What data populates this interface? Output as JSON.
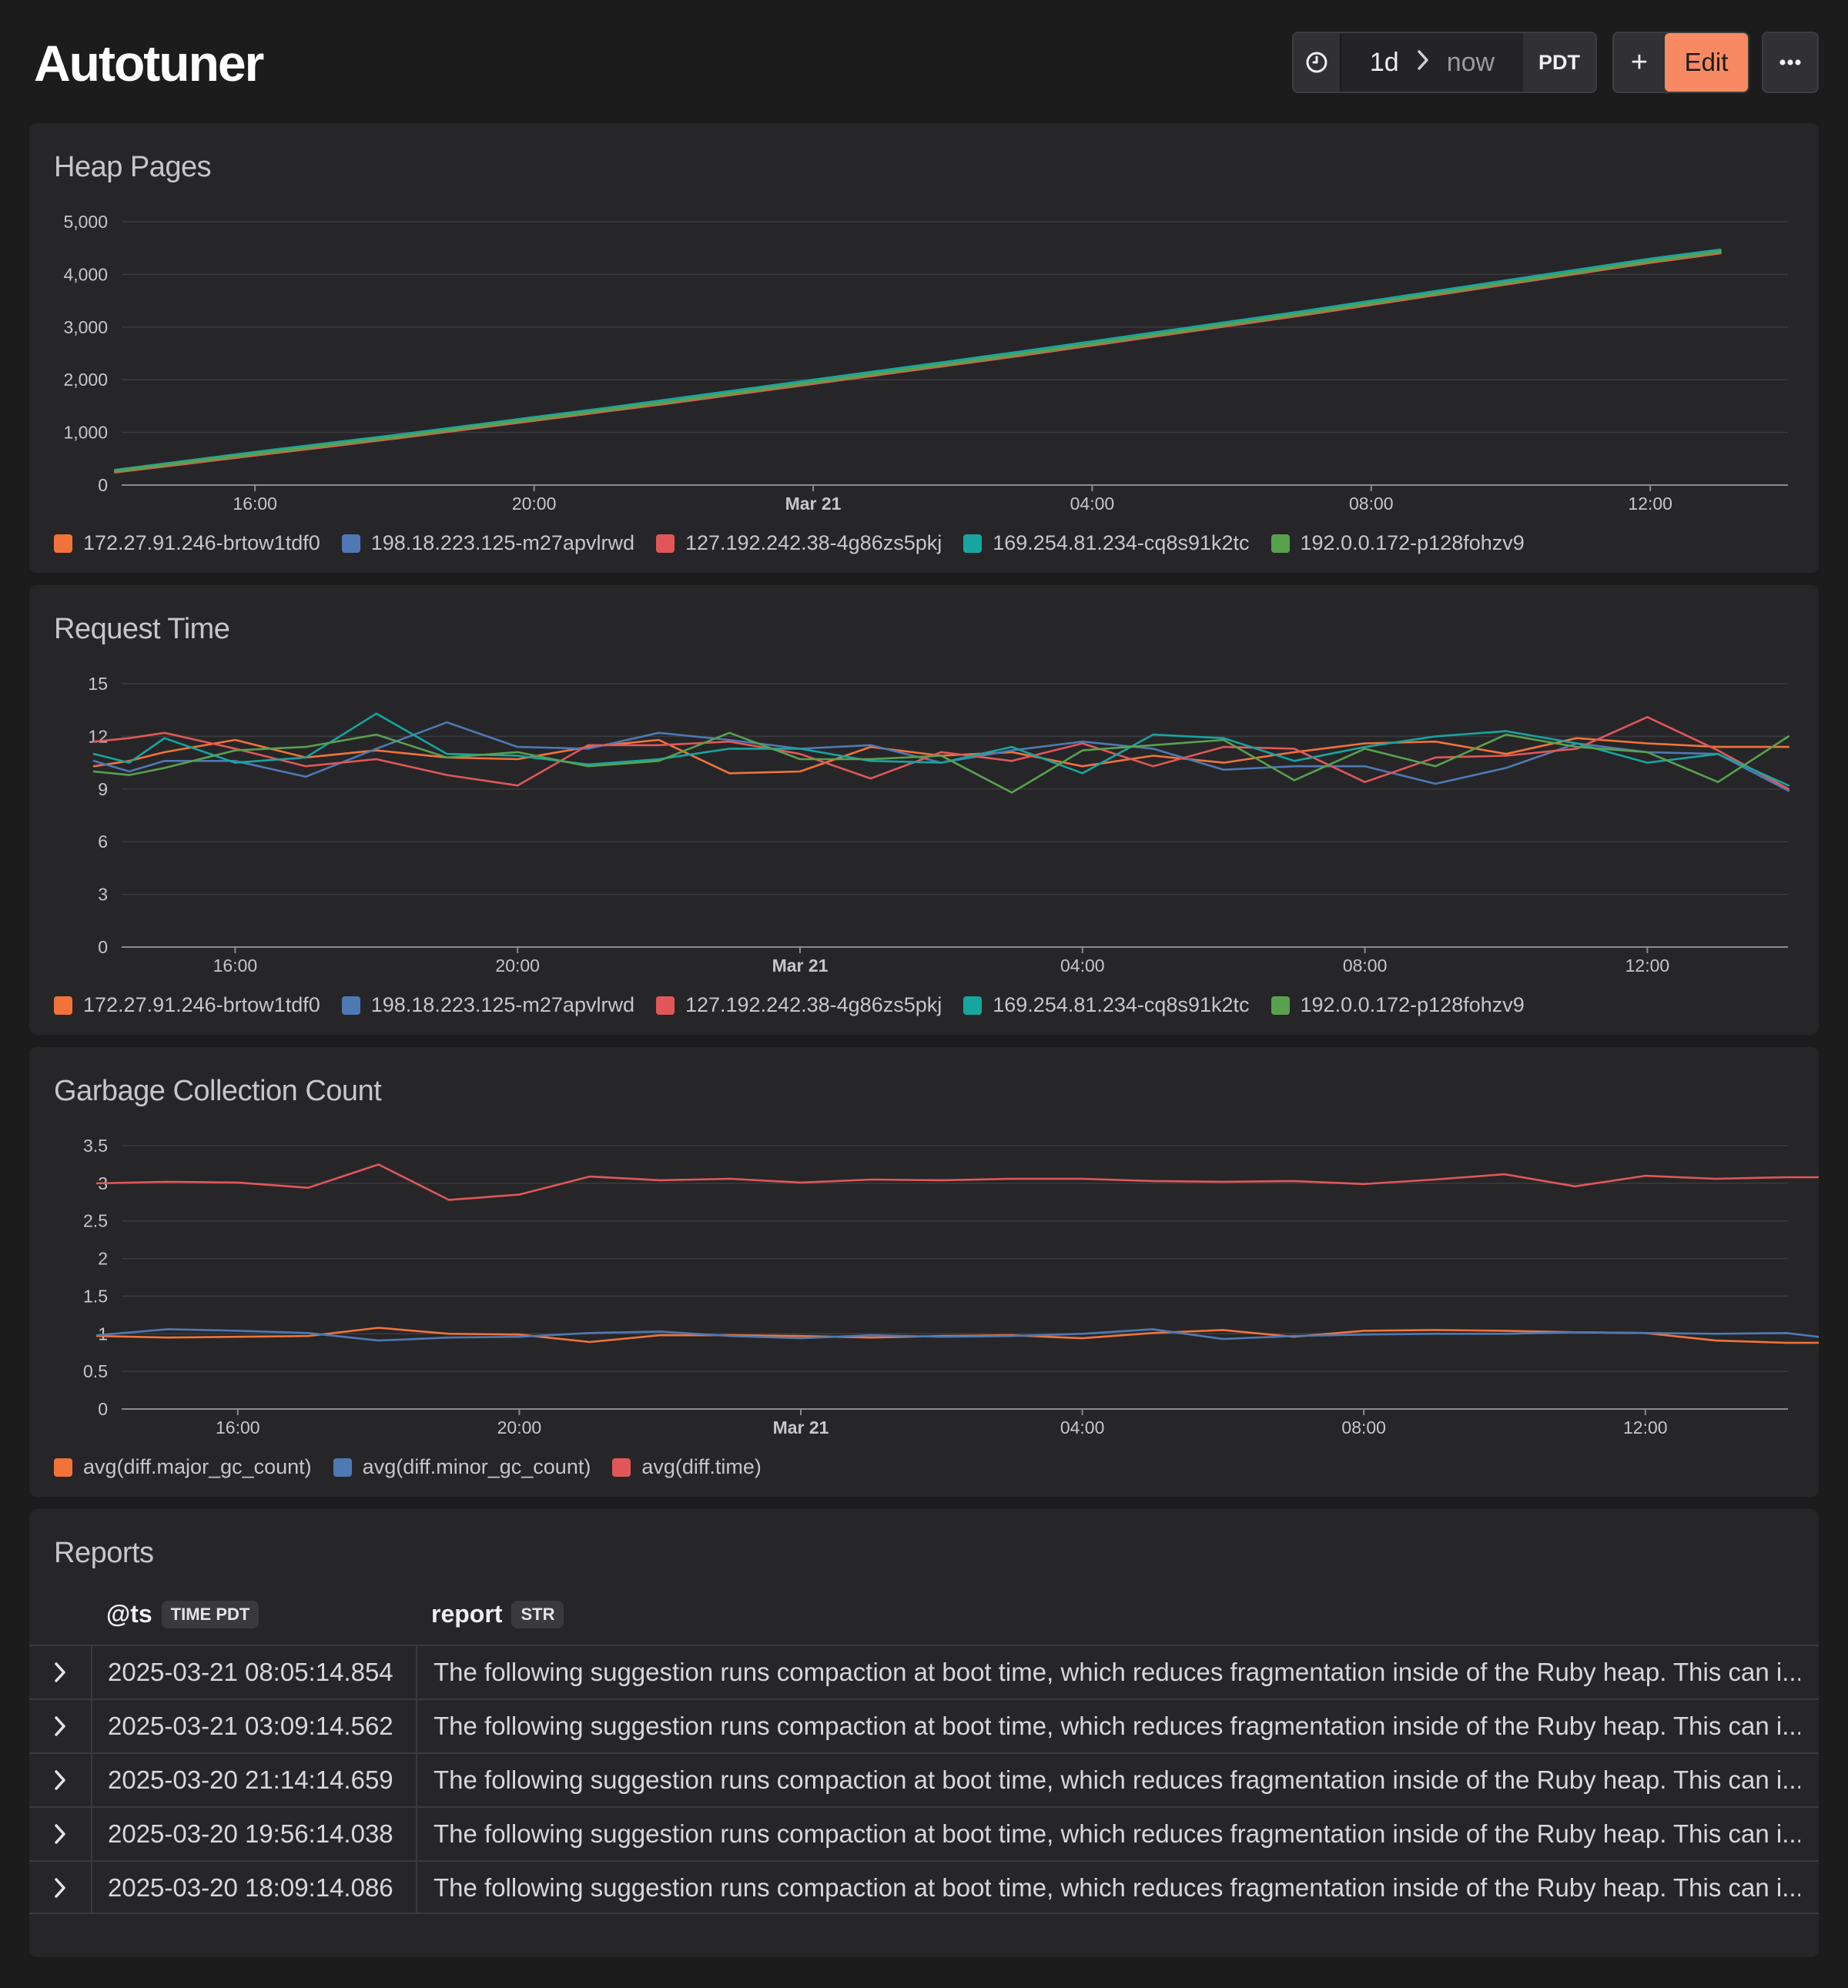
{
  "header": {
    "title": "Autotuner",
    "range": "1d",
    "range_end": "now",
    "timezone": "PDT",
    "add_label": "+",
    "edit_label": "Edit",
    "more_label": "···"
  },
  "colors": {
    "orange": "#f1733a",
    "blue": "#4e79b4",
    "red": "#e15759",
    "teal": "#17a5a0",
    "green": "#59a14f",
    "edit_accent": "#f88a63"
  },
  "panels": [
    {
      "title": "Heap Pages",
      "x_ticks": [
        "16:00",
        "20:00",
        "Mar 21",
        "04:00",
        "08:00",
        "12:00"
      ],
      "y_ticks": [
        "5,000",
        "4,000",
        "3,000",
        "2,000",
        "1,000",
        "0"
      ],
      "legend": [
        "172.27.91.246-brtow1tdf0",
        "198.18.223.125-m27apvlrwd",
        "127.192.242.38-4g86zs5pkj",
        "169.254.81.234-cq8s91k2tc",
        "192.0.0.172-p128fohzv9"
      ]
    },
    {
      "title": "Request Time",
      "x_ticks": [
        "16:00",
        "20:00",
        "Mar 21",
        "04:00",
        "08:00",
        "12:00"
      ],
      "y_ticks": [
        "15",
        "12",
        "9",
        "6",
        "3",
        "0"
      ],
      "legend": [
        "172.27.91.246-brtow1tdf0",
        "198.18.223.125-m27apvlrwd",
        "127.192.242.38-4g86zs5pkj",
        "169.254.81.234-cq8s91k2tc",
        "192.0.0.172-p128fohzv9"
      ]
    },
    {
      "title": "Garbage Collection Count",
      "x_ticks": [
        "16:00",
        "20:00",
        "Mar 21",
        "04:00",
        "08:00",
        "12:00"
      ],
      "y_ticks": [
        "3.5",
        "3",
        "2.5",
        "2",
        "1.5",
        "1",
        "0.5",
        "0"
      ],
      "legend": [
        "avg(diff.major_gc_count)",
        "avg(diff.minor_gc_count)",
        "avg(diff.time)"
      ]
    }
  ],
  "chart_data": [
    {
      "type": "line",
      "title": "Heap Pages",
      "x_unit": "hour offset from 14:00 Mar 20",
      "x": [
        0,
        1,
        2,
        3,
        4,
        5,
        6,
        7,
        8,
        9,
        10,
        11,
        12,
        13,
        14,
        15,
        16,
        17,
        18,
        19,
        20,
        21,
        22,
        23
      ],
      "ylim": [
        0,
        5000
      ],
      "series": [
        {
          "name": "172.27.91.246-brtow1tdf0",
          "color": "#f1733a",
          "values": [
            260,
            420,
            580,
            740,
            900,
            1070,
            1240,
            1410,
            1580,
            1760,
            1940,
            2120,
            2300,
            2480,
            2670,
            2860,
            3050,
            3240,
            3440,
            3640,
            3840,
            4040,
            4240,
            4420
          ]
        },
        {
          "name": "198.18.223.125-m27apvlrwd",
          "color": "#4e79b4",
          "values": [
            270,
            440,
            600,
            760,
            920,
            1090,
            1260,
            1430,
            1600,
            1780,
            1960,
            2140,
            2320,
            2500,
            2690,
            2880,
            3070,
            3260,
            3460,
            3660,
            3860,
            4060,
            4260,
            4440
          ]
        },
        {
          "name": "127.192.242.38-4g86zs5pkj",
          "color": "#e15759",
          "values": [
            250,
            410,
            570,
            730,
            890,
            1060,
            1230,
            1400,
            1570,
            1750,
            1930,
            2110,
            2290,
            2470,
            2660,
            2850,
            3040,
            3230,
            3430,
            3630,
            3830,
            4030,
            4230,
            4410
          ]
        },
        {
          "name": "169.254.81.234-cq8s91k2tc",
          "color": "#17a5a0",
          "values": [
            280,
            450,
            620,
            780,
            940,
            1110,
            1280,
            1450,
            1630,
            1810,
            1990,
            2170,
            2350,
            2530,
            2720,
            2910,
            3100,
            3290,
            3490,
            3690,
            3890,
            4090,
            4290,
            4460
          ]
        },
        {
          "name": "192.0.0.172-p128fohzv9",
          "color": "#59a14f",
          "values": [
            265,
            430,
            590,
            750,
            910,
            1080,
            1250,
            1420,
            1590,
            1770,
            1950,
            2130,
            2310,
            2490,
            2680,
            2870,
            3060,
            3250,
            3450,
            3650,
            3850,
            4050,
            4250,
            4430
          ]
        }
      ]
    },
    {
      "type": "line",
      "title": "Request Time",
      "x_unit": "hour offset from 14:00 Mar 20",
      "x": [
        0,
        0.5,
        1,
        2,
        3,
        4,
        5,
        6,
        7,
        8,
        9,
        10,
        11,
        12,
        13,
        14,
        15,
        16,
        17,
        18,
        19,
        20,
        21,
        22,
        23,
        24
      ],
      "ylim": [
        0,
        15
      ],
      "series": [
        {
          "name": "172.27.91.246-brtow1tdf0",
          "color": "#f1733a",
          "values": [
            10.3,
            10.6,
            11.1,
            11.8,
            10.8,
            11.2,
            10.8,
            10.7,
            11.4,
            11.8,
            9.9,
            10.0,
            11.4,
            10.9,
            11.1,
            10.3,
            10.9,
            10.5,
            11.1,
            11.6,
            11.7,
            11.0,
            11.9,
            11.6,
            11.4,
            11.4
          ]
        },
        {
          "name": "198.18.223.125-m27apvlrwd",
          "color": "#4e79b4",
          "values": [
            10.6,
            10.0,
            10.6,
            10.6,
            9.7,
            11.3,
            12.8,
            11.4,
            11.3,
            12.2,
            11.8,
            11.3,
            11.5,
            10.5,
            11.2,
            11.7,
            11.3,
            10.1,
            10.3,
            10.3,
            9.3,
            10.2,
            11.6,
            11.1,
            11.0,
            8.9
          ]
        },
        {
          "name": "127.192.242.38-4g86zs5pkj",
          "color": "#e15759",
          "values": [
            11.7,
            11.9,
            12.2,
            11.3,
            10.3,
            10.7,
            9.8,
            9.2,
            11.5,
            11.5,
            11.7,
            11.0,
            9.6,
            11.1,
            10.6,
            11.6,
            10.3,
            11.4,
            11.3,
            9.4,
            10.8,
            10.9,
            11.3,
            13.1,
            11.2,
            9.0
          ]
        },
        {
          "name": "169.254.81.234-cq8s91k2tc",
          "color": "#17a5a0",
          "values": [
            11.0,
            10.5,
            11.9,
            10.5,
            10.8,
            13.3,
            11.0,
            10.9,
            10.4,
            10.7,
            11.3,
            11.3,
            10.6,
            10.5,
            11.4,
            9.9,
            12.1,
            11.9,
            10.6,
            11.4,
            12.0,
            12.3,
            11.6,
            10.5,
            11.0,
            9.2
          ]
        },
        {
          "name": "192.0.0.172-p128fohzv9",
          "color": "#59a14f",
          "values": [
            10.0,
            9.8,
            10.2,
            11.2,
            11.4,
            12.1,
            10.8,
            11.1,
            10.3,
            10.6,
            12.2,
            10.7,
            10.7,
            10.9,
            8.8,
            11.2,
            11.5,
            11.8,
            9.5,
            11.3,
            10.3,
            12.1,
            11.4,
            11.1,
            9.4,
            12.0
          ]
        }
      ]
    },
    {
      "type": "line",
      "title": "Garbage Collection Count",
      "x_unit": "hour offset from 14:00 Mar 20",
      "x": [
        0,
        1,
        2,
        3,
        4,
        5,
        6,
        7,
        8,
        9,
        10,
        11,
        12,
        13,
        14,
        15,
        16,
        17,
        18,
        19,
        20,
        21,
        22,
        23,
        24,
        25
      ],
      "ylim": [
        0,
        3.5
      ],
      "series": [
        {
          "name": "avg(diff.major_gc_count)",
          "color": "#f1733a",
          "values": [
            0.97,
            0.95,
            0.96,
            0.97,
            1.08,
            1.0,
            0.99,
            0.89,
            0.98,
            0.98,
            0.97,
            0.95,
            0.97,
            0.98,
            0.94,
            1.01,
            1.05,
            0.96,
            1.04,
            1.05,
            1.04,
            1.02,
            1.01,
            0.91,
            0.88,
            0.88
          ]
        },
        {
          "name": "avg(diff.minor_gc_count)",
          "color": "#4e79b4",
          "values": [
            0.98,
            1.06,
            1.04,
            1.01,
            0.91,
            0.95,
            0.96,
            1.01,
            1.03,
            0.97,
            0.94,
            0.98,
            0.96,
            0.97,
            1.0,
            1.06,
            0.93,
            0.97,
            0.99,
            1.0,
            1.0,
            1.02,
            1.01,
            1.0,
            1.01,
            0.9
          ]
        },
        {
          "name": "avg(diff.time)",
          "color": "#e15759",
          "values": [
            3.0,
            3.02,
            3.01,
            2.94,
            3.25,
            2.78,
            2.85,
            3.09,
            3.04,
            3.06,
            3.01,
            3.05,
            3.04,
            3.06,
            3.06,
            3.03,
            3.02,
            3.03,
            2.99,
            3.05,
            3.12,
            2.96,
            3.1,
            3.06,
            3.08,
            3.08
          ]
        }
      ]
    }
  ],
  "reports": {
    "title": "Reports",
    "columns": [
      {
        "name": "@ts",
        "type": "TIME PDT"
      },
      {
        "name": "report",
        "type": "STR"
      }
    ],
    "rows": [
      {
        "ts": "2025-03-21 08:05:14.854",
        "report": "The following suggestion runs compaction at boot time, which reduces fragmentation inside of the Ruby heap. This can i..."
      },
      {
        "ts": "2025-03-21 03:09:14.562",
        "report": "The following suggestion runs compaction at boot time, which reduces fragmentation inside of the Ruby heap. This can i..."
      },
      {
        "ts": "2025-03-20 21:14:14.659",
        "report": "The following suggestion runs compaction at boot time, which reduces fragmentation inside of the Ruby heap. This can i..."
      },
      {
        "ts": "2025-03-20 19:56:14.038",
        "report": "The following suggestion runs compaction at boot time, which reduces fragmentation inside of the Ruby heap. This can i..."
      },
      {
        "ts": "2025-03-20 18:09:14.086",
        "report": "The following suggestion runs compaction at boot time, which reduces fragmentation inside of the Ruby heap. This can i..."
      }
    ]
  }
}
